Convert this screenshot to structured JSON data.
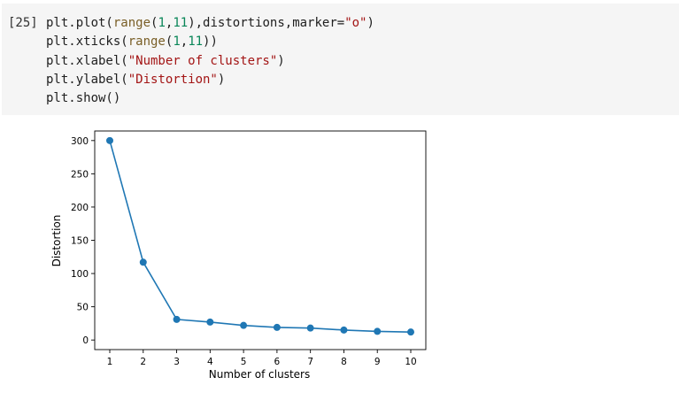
{
  "cell": {
    "execution_count": "[25]",
    "code_lines": [
      [
        {
          "t": "plt.plot(",
          "k": "plain"
        },
        {
          "t": "range",
          "k": "builtin"
        },
        {
          "t": "(",
          "k": "plain"
        },
        {
          "t": "1",
          "k": "num"
        },
        {
          "t": ",",
          "k": "plain"
        },
        {
          "t": "11",
          "k": "num"
        },
        {
          "t": "),distortions,marker=",
          "k": "plain"
        },
        {
          "t": "\"o\"",
          "k": "str"
        },
        {
          "t": ")",
          "k": "plain"
        }
      ],
      [
        {
          "t": "plt.xticks(",
          "k": "plain"
        },
        {
          "t": "range",
          "k": "builtin"
        },
        {
          "t": "(",
          "k": "plain"
        },
        {
          "t": "1",
          "k": "num"
        },
        {
          "t": ",",
          "k": "plain"
        },
        {
          "t": "11",
          "k": "num"
        },
        {
          "t": "))",
          "k": "plain"
        }
      ],
      [
        {
          "t": "plt.xlabel(",
          "k": "plain"
        },
        {
          "t": "\"Number of clusters\"",
          "k": "str"
        },
        {
          "t": ")",
          "k": "plain"
        }
      ],
      [
        {
          "t": "plt.ylabel(",
          "k": "plain"
        },
        {
          "t": "\"Distortion\"",
          "k": "str"
        },
        {
          "t": ")",
          "k": "plain"
        }
      ],
      [
        {
          "t": "plt.show()",
          "k": "plain"
        }
      ]
    ],
    "colors": {
      "code_background": "#f5f5f5",
      "builtin": "#795e26",
      "number": "#098658",
      "string": "#a31515",
      "line": "#1f77b4"
    }
  },
  "chart_data": {
    "type": "line",
    "title": "",
    "xlabel": "Number of clusters",
    "ylabel": "Distortion",
    "x": [
      1,
      2,
      3,
      4,
      5,
      6,
      7,
      8,
      9,
      10
    ],
    "series": [
      {
        "marker": "o",
        "values": [
          300,
          117,
          31,
          27,
          22,
          19,
          18,
          15,
          13,
          12
        ]
      }
    ],
    "xticks": [
      "1",
      "2",
      "3",
      "4",
      "5",
      "6",
      "7",
      "8",
      "9",
      "10"
    ],
    "yticks": [
      "0",
      "50",
      "100",
      "150",
      "200",
      "250",
      "300"
    ],
    "ytick_values": [
      0,
      50,
      100,
      150,
      200,
      250,
      300
    ],
    "xlim": [
      0.55,
      10.45
    ],
    "ylim": [
      -14.4,
      314.4
    ],
    "grid": false,
    "legend": "none"
  }
}
